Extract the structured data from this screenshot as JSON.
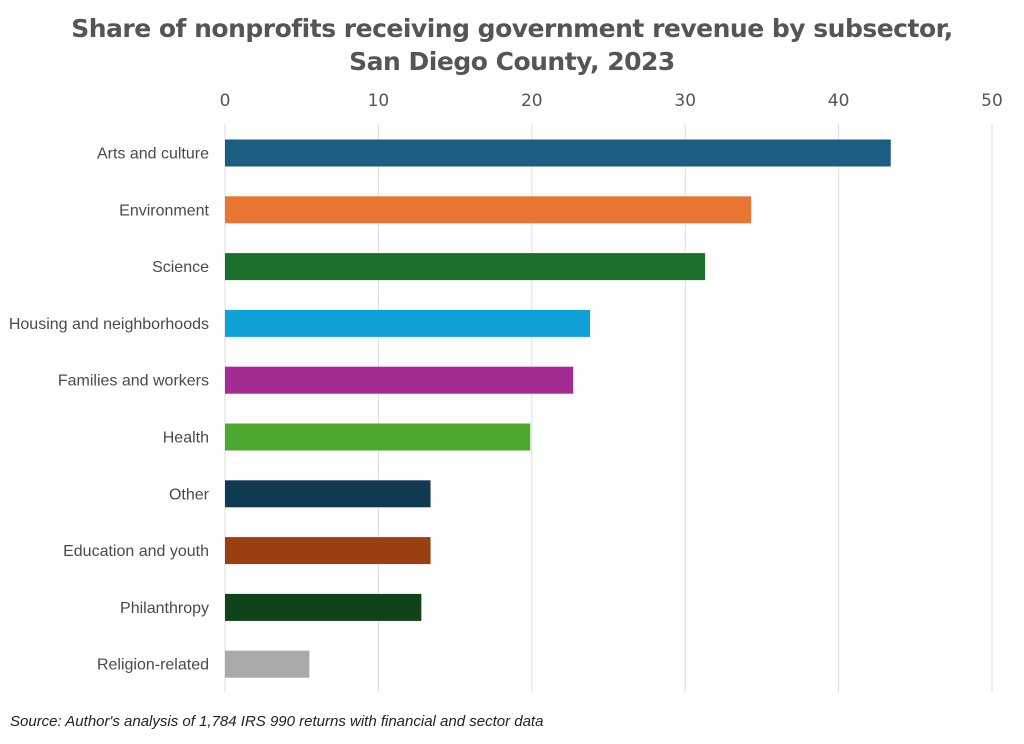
{
  "chart_data": {
    "type": "bar",
    "orientation": "horizontal",
    "title": "Share of nonprofits receiving government revenue by subsector, San Diego County, 2023",
    "title_lines": [
      "Share of nonprofits receiving government revenue by subsector,",
      "San Diego County, 2023"
    ],
    "categories": [
      "Arts and culture",
      "Environment",
      "Science",
      "Housing and neighborhoods",
      "Families and workers",
      "Health",
      "Other",
      "Education and youth",
      "Philanthropy",
      "Religion-related"
    ],
    "values": [
      43.4,
      34.3,
      31.3,
      23.8,
      22.7,
      19.9,
      13.4,
      13.4,
      12.8,
      5.5
    ],
    "colors": [
      "#1b5e82",
      "#e97532",
      "#1a6f2a",
      "#0fa0d8",
      "#a32b92",
      "#4ca82f",
      "#0f3a52",
      "#9a3f10",
      "#0f4419",
      "#a7aaa9"
    ],
    "xlim": [
      0,
      50
    ],
    "xticks": [
      0,
      10,
      20,
      30,
      40,
      50
    ],
    "axis_position": "top",
    "grid": true,
    "legend": "none",
    "xlabel": "",
    "ylabel": ""
  },
  "source": "Source: Author's analysis of 1,784 IRS 990 returns with financial and sector data"
}
